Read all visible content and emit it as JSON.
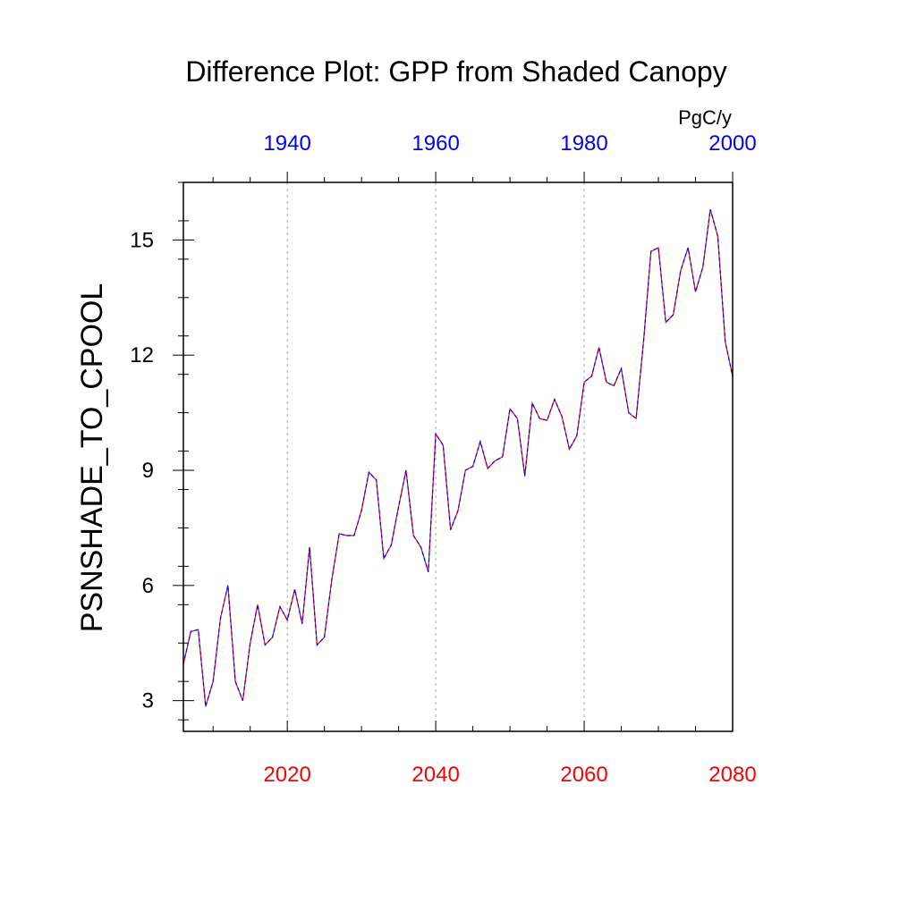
{
  "chart_data": {
    "type": "line",
    "title": "Difference Plot: GPP from Shaded Canopy",
    "ylabel": "PSNSHADE_TO_CPOOL",
    "units": "PgC/y",
    "ylim": [
      2.2,
      16.5
    ],
    "yticks": [
      "3",
      "6",
      "9",
      "12",
      "15"
    ],
    "bottom_axis": {
      "xlim": [
        2006,
        2080
      ],
      "ticks": [
        "2020",
        "2040",
        "2060",
        "2080"
      ],
      "color": "#ff0000"
    },
    "top_axis": {
      "xlim": [
        1926,
        2000
      ],
      "ticks": [
        "1940",
        "1960",
        "1980",
        "2000"
      ],
      "color": "#0000ff"
    },
    "grid": "vertical dotted at bottom-axis major ticks",
    "series": [
      {
        "color_a": "#ff0000",
        "color_b": "#0000ff",
        "style": "dashed overlay",
        "x": [
          2006,
          2007,
          2008,
          2009,
          2010,
          2011,
          2012,
          2013,
          2014,
          2015,
          2016,
          2017,
          2018,
          2019,
          2020,
          2021,
          2022,
          2023,
          2024,
          2025,
          2026,
          2027,
          2028,
          2029,
          2030,
          2031,
          2032,
          2033,
          2034,
          2035,
          2036,
          2037,
          2038,
          2039,
          2040,
          2041,
          2042,
          2043,
          2044,
          2045,
          2046,
          2047,
          2048,
          2049,
          2050,
          2051,
          2052,
          2053,
          2054,
          2055,
          2056,
          2057,
          2058,
          2059,
          2060,
          2061,
          2062,
          2063,
          2064,
          2065,
          2066,
          2067,
          2068,
          2069,
          2070,
          2071,
          2072,
          2073,
          2074,
          2075,
          2076,
          2077,
          2078,
          2079,
          2080
        ],
        "values": [
          3.95,
          4.8,
          4.85,
          2.85,
          3.5,
          5.15,
          6.0,
          3.5,
          3.0,
          4.5,
          5.5,
          4.45,
          4.65,
          5.45,
          5.1,
          5.9,
          5.0,
          7.0,
          4.45,
          4.65,
          6.15,
          7.35,
          7.3,
          7.3,
          7.95,
          8.95,
          8.75,
          6.7,
          7.05,
          8.05,
          9.0,
          7.3,
          7.0,
          6.35,
          9.95,
          9.65,
          7.45,
          7.95,
          9.0,
          9.1,
          9.75,
          9.05,
          9.25,
          9.35,
          10.6,
          10.35,
          8.85,
          10.75,
          10.35,
          10.3,
          10.85,
          10.4,
          9.55,
          9.9,
          11.3,
          11.45,
          12.2,
          11.3,
          11.2,
          11.65,
          10.5,
          10.35,
          12.35,
          14.7,
          14.8,
          12.85,
          13.05,
          14.2,
          14.8,
          13.65,
          14.3,
          15.8,
          15.1,
          12.35,
          11.45
        ]
      }
    ]
  }
}
